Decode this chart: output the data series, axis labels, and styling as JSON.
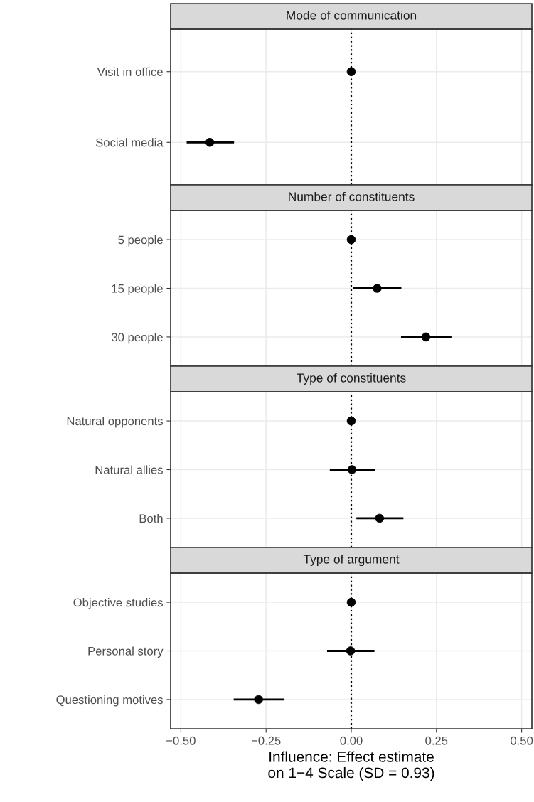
{
  "chart_data": [
    {
      "type": "scatter",
      "title": "Mode of communication",
      "orientation": "horizontal",
      "categories": [
        "Visit in office",
        "Social media"
      ],
      "values": [
        0,
        -0.415
      ],
      "errors": [
        null,
        [
          -0.483,
          -0.344
        ]
      ],
      "color": "#000000",
      "marker": "circle",
      "xlim": [
        -0.53,
        0.53
      ],
      "xticks": [
        {
          "value": -0.5,
          "label": null
        },
        {
          "value": -0.25,
          "label": null
        },
        {
          "value": 0,
          "label": null
        },
        {
          "value": 0.25,
          "label": null
        },
        {
          "value": 0.5,
          "label": null
        }
      ],
      "ref_lines": [
        {
          "axis": "x",
          "value": 0,
          "color": "#000000",
          "line_style": "dotted"
        }
      ],
      "grid": true,
      "tick_labels": "y"
    },
    {
      "type": "scatter",
      "title": "Number of constituents",
      "orientation": "horizontal",
      "categories": [
        "5 people",
        "15 people",
        "30 people"
      ],
      "values": [
        0,
        0.076,
        0.219
      ],
      "errors": [
        null,
        [
          0.006,
          0.147
        ],
        [
          0.146,
          0.294
        ]
      ],
      "color": "#000000",
      "marker": "circle",
      "xlim": [
        -0.53,
        0.53
      ],
      "xticks": [
        {
          "value": -0.5,
          "label": null
        },
        {
          "value": -0.25,
          "label": null
        },
        {
          "value": 0,
          "label": null
        },
        {
          "value": 0.25,
          "label": null
        },
        {
          "value": 0.5,
          "label": null
        }
      ],
      "ref_lines": [
        {
          "axis": "x",
          "value": 0,
          "color": "#000000",
          "line_style": "dotted"
        }
      ],
      "grid": true,
      "tick_labels": "y"
    },
    {
      "type": "scatter",
      "title": "Type of constituents",
      "orientation": "horizontal",
      "categories": [
        "Natural opponents",
        "Natural allies",
        "Both"
      ],
      "values": [
        0,
        0.002,
        0.083
      ],
      "errors": [
        null,
        [
          -0.063,
          0.071
        ],
        [
          0.015,
          0.153
        ]
      ],
      "color": "#000000",
      "marker": "circle",
      "xlim": [
        -0.53,
        0.53
      ],
      "xticks": [
        {
          "value": -0.5,
          "label": null
        },
        {
          "value": -0.25,
          "label": null
        },
        {
          "value": 0,
          "label": null
        },
        {
          "value": 0.25,
          "label": null
        },
        {
          "value": 0.5,
          "label": null
        }
      ],
      "ref_lines": [
        {
          "axis": "x",
          "value": 0,
          "color": "#000000",
          "line_style": "dotted"
        }
      ],
      "grid": true,
      "tick_labels": "y"
    },
    {
      "type": "scatter",
      "title": "Type of argument",
      "orientation": "horizontal",
      "categories": [
        "Objective studies",
        "Personal story",
        "Questioning motives"
      ],
      "values": [
        0,
        -0.002,
        -0.272
      ],
      "errors": [
        null,
        [
          -0.071,
          0.068
        ],
        [
          -0.345,
          -0.196
        ]
      ],
      "color": "#000000",
      "marker": "circle",
      "xlim": [
        -0.53,
        0.53
      ],
      "xticks": [
        {
          "value": -0.5,
          "label": "−0.50"
        },
        {
          "value": -0.25,
          "label": "−0.25"
        },
        {
          "value": 0,
          "label": "0.00"
        },
        {
          "value": 0.25,
          "label": "0.25"
        },
        {
          "value": 0.5,
          "label": "0.50"
        }
      ],
      "ref_lines": [
        {
          "axis": "x",
          "value": 0,
          "color": "#000000",
          "line_style": "dotted"
        }
      ],
      "grid": true,
      "xlabel": "Influence: Effect estimate\non 1−4 Scale (SD = 0.93)"
    }
  ]
}
